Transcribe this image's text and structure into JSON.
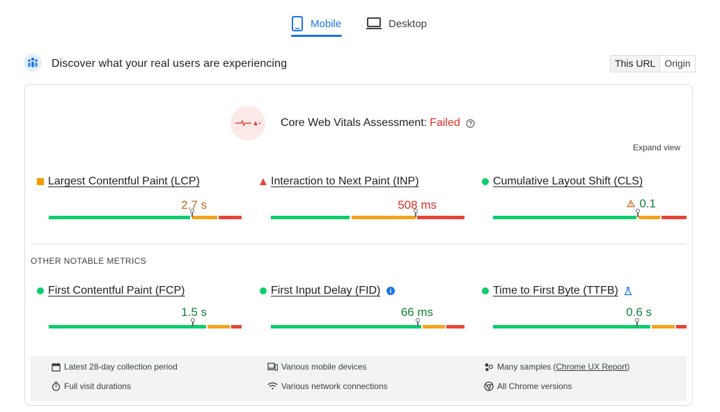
{
  "tabs": {
    "mobile": "Mobile",
    "desktop": "Desktop"
  },
  "header": {
    "title": "Discover what your real users are experiencing",
    "url_toggle": [
      "This URL",
      "Origin"
    ]
  },
  "assessment": {
    "label": "Core Web Vitals Assessment:",
    "status": "Failed",
    "expand": "Expand view"
  },
  "core_metrics": [
    {
      "name": "Largest Contentful Paint (LCP)",
      "value": "2.7 s",
      "rating": "needs-improvement",
      "marker_percent": 74
    },
    {
      "name": "Interaction to Next Paint (INP)",
      "value": "508 ms",
      "rating": "poor",
      "marker_percent": 75
    },
    {
      "name": "Cumulative Layout Shift (CLS)",
      "value": "0.1",
      "rating": "good",
      "marker_percent": 75
    }
  ],
  "other_title": "OTHER NOTABLE METRICS",
  "other_metrics": [
    {
      "name": "First Contentful Paint (FCP)",
      "value": "1.5 s",
      "rating": "good",
      "marker_percent": 74
    },
    {
      "name": "First Input Delay (FID)",
      "value": "66 ms",
      "rating": "good",
      "marker_percent": 76
    },
    {
      "name": "Time to First Byte (TTFB)",
      "value": "0.6 s",
      "rating": "good",
      "marker_percent": 74
    }
  ],
  "footer": {
    "period": "Latest 28-day collection period",
    "devices": "Various mobile devices",
    "samples": "Many samples",
    "samples_link": "Chrome UX Report",
    "durations": "Full visit durations",
    "network": "Various network connections",
    "versions": "All Chrome versions"
  },
  "colors": {
    "accent": "#1a73e8",
    "good": "#0cce6b",
    "average": "#f29900",
    "poor": "#ea4335"
  }
}
